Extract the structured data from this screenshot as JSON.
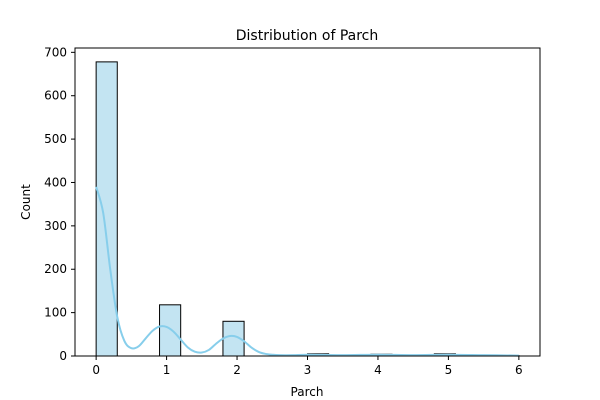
{
  "chart_data": {
    "type": "bar",
    "title": "Distribution of Parch",
    "xlabel": "Parch",
    "ylabel": "Count",
    "xlim": [
      -0.3,
      6.3
    ],
    "ylim": [
      0,
      710
    ],
    "xticks": [
      0,
      1,
      2,
      3,
      4,
      5,
      6
    ],
    "yticks": [
      0,
      100,
      200,
      300,
      400,
      500,
      600,
      700
    ],
    "bins": [
      {
        "start": 0.0,
        "end": 0.3,
        "count": 678
      },
      {
        "start": 0.9,
        "end": 1.2,
        "count": 118
      },
      {
        "start": 1.8,
        "end": 2.1,
        "count": 80
      },
      {
        "start": 3.0,
        "end": 3.3,
        "count": 5
      },
      {
        "start": 3.9,
        "end": 4.2,
        "count": 4
      },
      {
        "start": 4.8,
        "end": 5.1,
        "count": 5
      },
      {
        "start": 5.7,
        "end": 6.0,
        "count": 1
      }
    ],
    "kde": {
      "x": [
        0.0,
        0.1,
        0.2,
        0.3,
        0.4,
        0.5,
        0.6,
        0.7,
        0.8,
        0.9,
        1.0,
        1.1,
        1.2,
        1.3,
        1.4,
        1.5,
        1.6,
        1.7,
        1.8,
        1.9,
        2.0,
        2.1,
        2.2,
        2.3,
        2.4,
        2.5,
        2.6,
        2.8,
        3.0,
        3.5,
        4.0,
        4.5,
        5.0,
        5.5,
        6.0
      ],
      "y": [
        390,
        330,
        200,
        90,
        35,
        18,
        22,
        40,
        58,
        68,
        67,
        56,
        38,
        20,
        10,
        8,
        14,
        28,
        40,
        46,
        44,
        34,
        20,
        10,
        5,
        3,
        2,
        2,
        3,
        2,
        3,
        2,
        3,
        2,
        1
      ]
    },
    "colors": {
      "bar_fill": "#c3e4f2",
      "bar_edge": "#000000",
      "kde_line": "#87ceeb"
    },
    "grid": false,
    "legend": "none"
  }
}
